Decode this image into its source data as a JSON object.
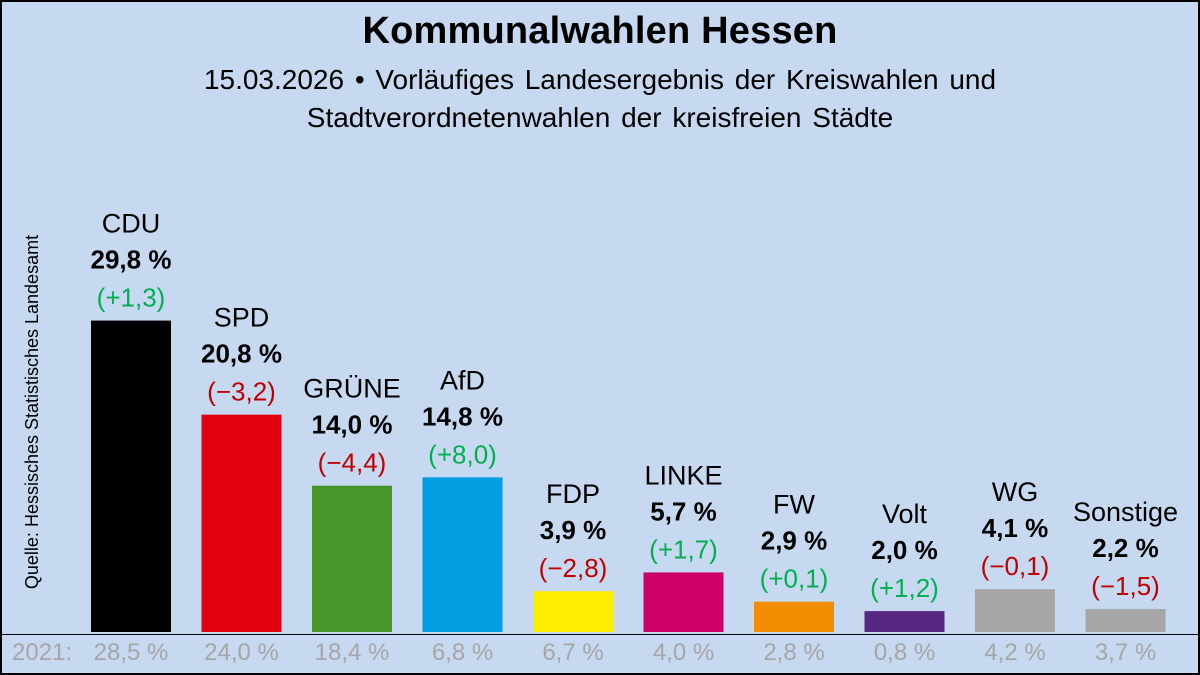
{
  "chart_data": {
    "type": "bar",
    "title": "Kommunalwahlen Hessen",
    "subtitle_line1": "15.03.2026 • Vorläufiges Landesergebnis der Kreiswahlen und",
    "subtitle_line2": "Stadtverordnetenwahlen der kreisfreien Städte",
    "source": "Quelle: Hessisches Statistisches Landesamt",
    "previous_label": "2021:",
    "unit": "%",
    "categories": [
      "CDU",
      "SPD",
      "GRÜNE",
      "AfD",
      "FDP",
      "LINKE",
      "FW",
      "Volt",
      "WG",
      "Sonstige"
    ],
    "values": [
      29.8,
      20.8,
      14.0,
      14.8,
      3.9,
      5.7,
      2.9,
      2.0,
      4.1,
      2.2
    ],
    "value_labels": [
      "29,8 %",
      "20,8 %",
      "14,0 %",
      "14,8 %",
      "3,9 %",
      "5,7 %",
      "2,9 %",
      "2,0 %",
      "4,1 %",
      "2,2 %"
    ],
    "changes": [
      1.3,
      -3.2,
      -4.4,
      8.0,
      -2.8,
      1.7,
      0.1,
      1.2,
      -0.1,
      -1.5
    ],
    "change_labels": [
      "(+1,3)",
      "(−3,2)",
      "(−4,4)",
      "(+8,0)",
      "(−2,8)",
      "(+1,7)",
      "(+0,1)",
      "(+1,2)",
      "(−0,1)",
      "(−1,5)"
    ],
    "previous_values": [
      28.5,
      24.0,
      18.4,
      6.8,
      6.7,
      4.0,
      2.8,
      0.8,
      4.2,
      3.7
    ],
    "previous_labels": [
      "28,5 %",
      "24,0 %",
      "18,4 %",
      "6,8 %",
      "6,7 %",
      "4,0 %",
      "2,8 %",
      "0,8 %",
      "4,2 %",
      "3,7 %"
    ],
    "colors": [
      "#000000",
      "#e3000f",
      "#46962b",
      "#009ee0",
      "#ffed00",
      "#cc0066",
      "#f28c00",
      "#562883",
      "#a6a6a6",
      "#a6a6a6"
    ],
    "change_colors": {
      "positive": "#00b050",
      "negative": "#c00000"
    },
    "ylim": [
      0,
      32
    ],
    "xlabel": "",
    "ylabel": ""
  }
}
